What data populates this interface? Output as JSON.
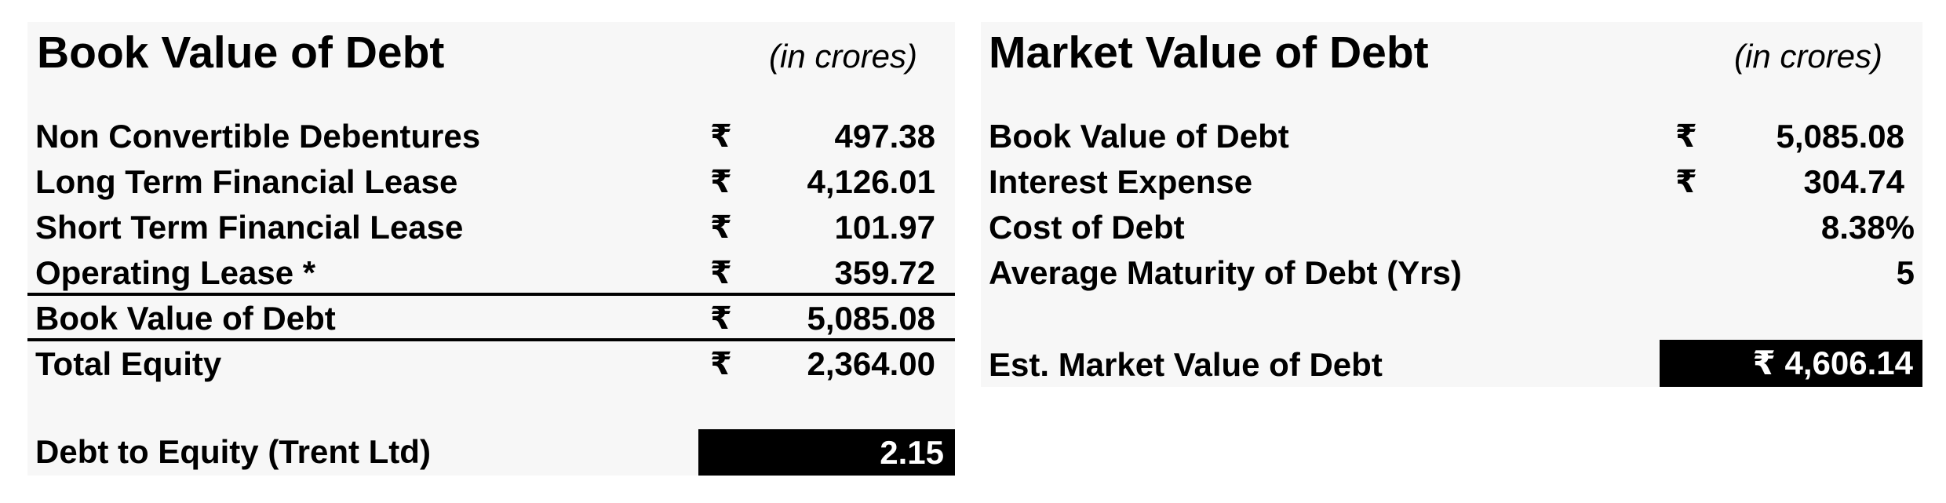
{
  "book_value_panel": {
    "title": "Book Value of Debt",
    "units": "(in crores)",
    "currency_symbol": "₹",
    "rows": [
      {
        "label": "Non Convertible Debentures",
        "value": "497.38"
      },
      {
        "label": "Long Term Financial Lease",
        "value": "4,126.01"
      },
      {
        "label": "Short Term Financial Lease",
        "value": "101.97"
      },
      {
        "label": "Operating Lease *",
        "value": "359.72"
      }
    ],
    "total": {
      "label": "Book Value of Debt",
      "value": "5,085.08"
    },
    "equity": {
      "label": "Total Equity",
      "value": "2,364.00"
    },
    "ratio": {
      "label": "Debt to Equity (Trent Ltd)",
      "value": "2.15"
    }
  },
  "market_value_panel": {
    "title": "Market Value of Debt",
    "units": "(in crores)",
    "currency_symbol": "₹",
    "rows": [
      {
        "label": "Book Value of Debt",
        "value": "5,085.08"
      },
      {
        "label": "Interest Expense",
        "value": "304.74"
      },
      {
        "label": "Cost of Debt",
        "value": "8.38%"
      },
      {
        "label": "Average Maturity of Debt (Yrs)",
        "value": "5"
      }
    ],
    "result": {
      "label": "Est. Market Value of Debt",
      "value": "₹ 4,606.14"
    }
  }
}
